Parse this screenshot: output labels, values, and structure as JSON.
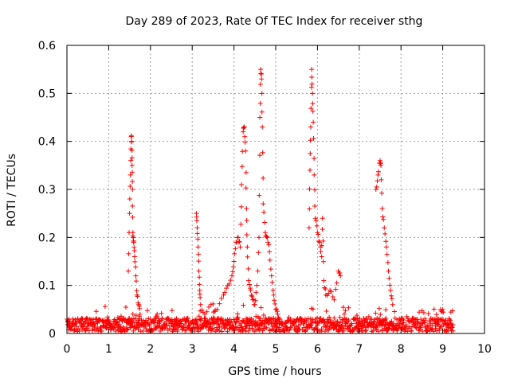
{
  "chart_data": {
    "type": "scatter",
    "title": "Day 289 of 2023, Rate Of TEC Index for receiver sthg",
    "xlabel": "GPS time / hours",
    "ylabel": "ROTI / TECUs",
    "xlim": [
      0,
      10
    ],
    "ylim": [
      0,
      0.6
    ],
    "x_ticks": [
      "0",
      "1",
      "2",
      "3",
      "4",
      "5",
      "6",
      "7",
      "8",
      "9",
      "10"
    ],
    "y_ticks": [
      "0",
      "0.1",
      "0.2",
      "0.3",
      "0.4",
      "0.5",
      "0.6"
    ],
    "grid": true,
    "marker": "+",
    "marker_color": "#ff0000",
    "x_range_data": [
      0,
      9.25
    ],
    "series": [
      {
        "x": [
          1.47,
          1.5,
          1.52,
          1.54,
          1.55,
          1.56,
          1.57,
          1.58,
          1.59,
          1.6,
          1.62,
          1.65,
          1.68,
          1.72,
          1.75,
          3.1,
          3.12,
          3.14,
          3.16,
          3.18,
          3.2,
          3.3,
          3.45,
          3.6,
          3.75,
          3.85,
          3.95,
          4.0,
          4.05,
          4.1,
          4.15,
          4.18,
          4.22,
          4.25,
          4.28,
          4.3,
          4.32,
          4.35,
          4.4,
          4.45,
          4.5,
          4.55,
          4.6,
          4.62,
          4.64,
          4.66,
          4.68,
          4.7,
          4.75,
          4.8,
          4.85,
          4.9,
          4.95,
          5.0,
          5.05,
          5.1,
          5.8,
          5.82,
          5.84,
          5.86,
          5.88,
          5.9,
          5.92,
          5.95,
          6.0,
          6.05,
          6.1,
          6.12,
          6.15,
          6.2,
          6.3,
          6.4,
          6.5,
          6.55,
          7.4,
          7.45,
          7.5,
          7.52,
          7.55,
          7.6,
          7.65,
          7.7,
          7.75,
          7.8,
          8.95,
          9.0
        ],
        "y": [
          0.13,
          0.25,
          0.33,
          0.41,
          0.4,
          0.35,
          0.3,
          0.21,
          0.2,
          0.19,
          0.16,
          0.12,
          0.08,
          0.06,
          0.04,
          0.25,
          0.22,
          0.18,
          0.13,
          0.09,
          0.06,
          0.04,
          0.06,
          0.05,
          0.08,
          0.1,
          0.12,
          0.15,
          0.19,
          0.2,
          0.18,
          0.31,
          0.42,
          0.43,
          0.38,
          0.26,
          0.18,
          0.11,
          0.09,
          0.07,
          0.06,
          0.1,
          0.2,
          0.45,
          0.55,
          0.53,
          0.43,
          0.27,
          0.21,
          0.2,
          0.17,
          0.12,
          0.08,
          0.05,
          0.04,
          0.03,
          0.22,
          0.34,
          0.43,
          0.55,
          0.5,
          0.44,
          0.33,
          0.24,
          0.21,
          0.19,
          0.16,
          0.24,
          0.11,
          0.08,
          0.09,
          0.07,
          0.13,
          0.12,
          0.3,
          0.33,
          0.36,
          0.35,
          0.26,
          0.22,
          0.18,
          0.13,
          0.09,
          0.06,
          0.05,
          0.05
        ]
      }
    ]
  }
}
